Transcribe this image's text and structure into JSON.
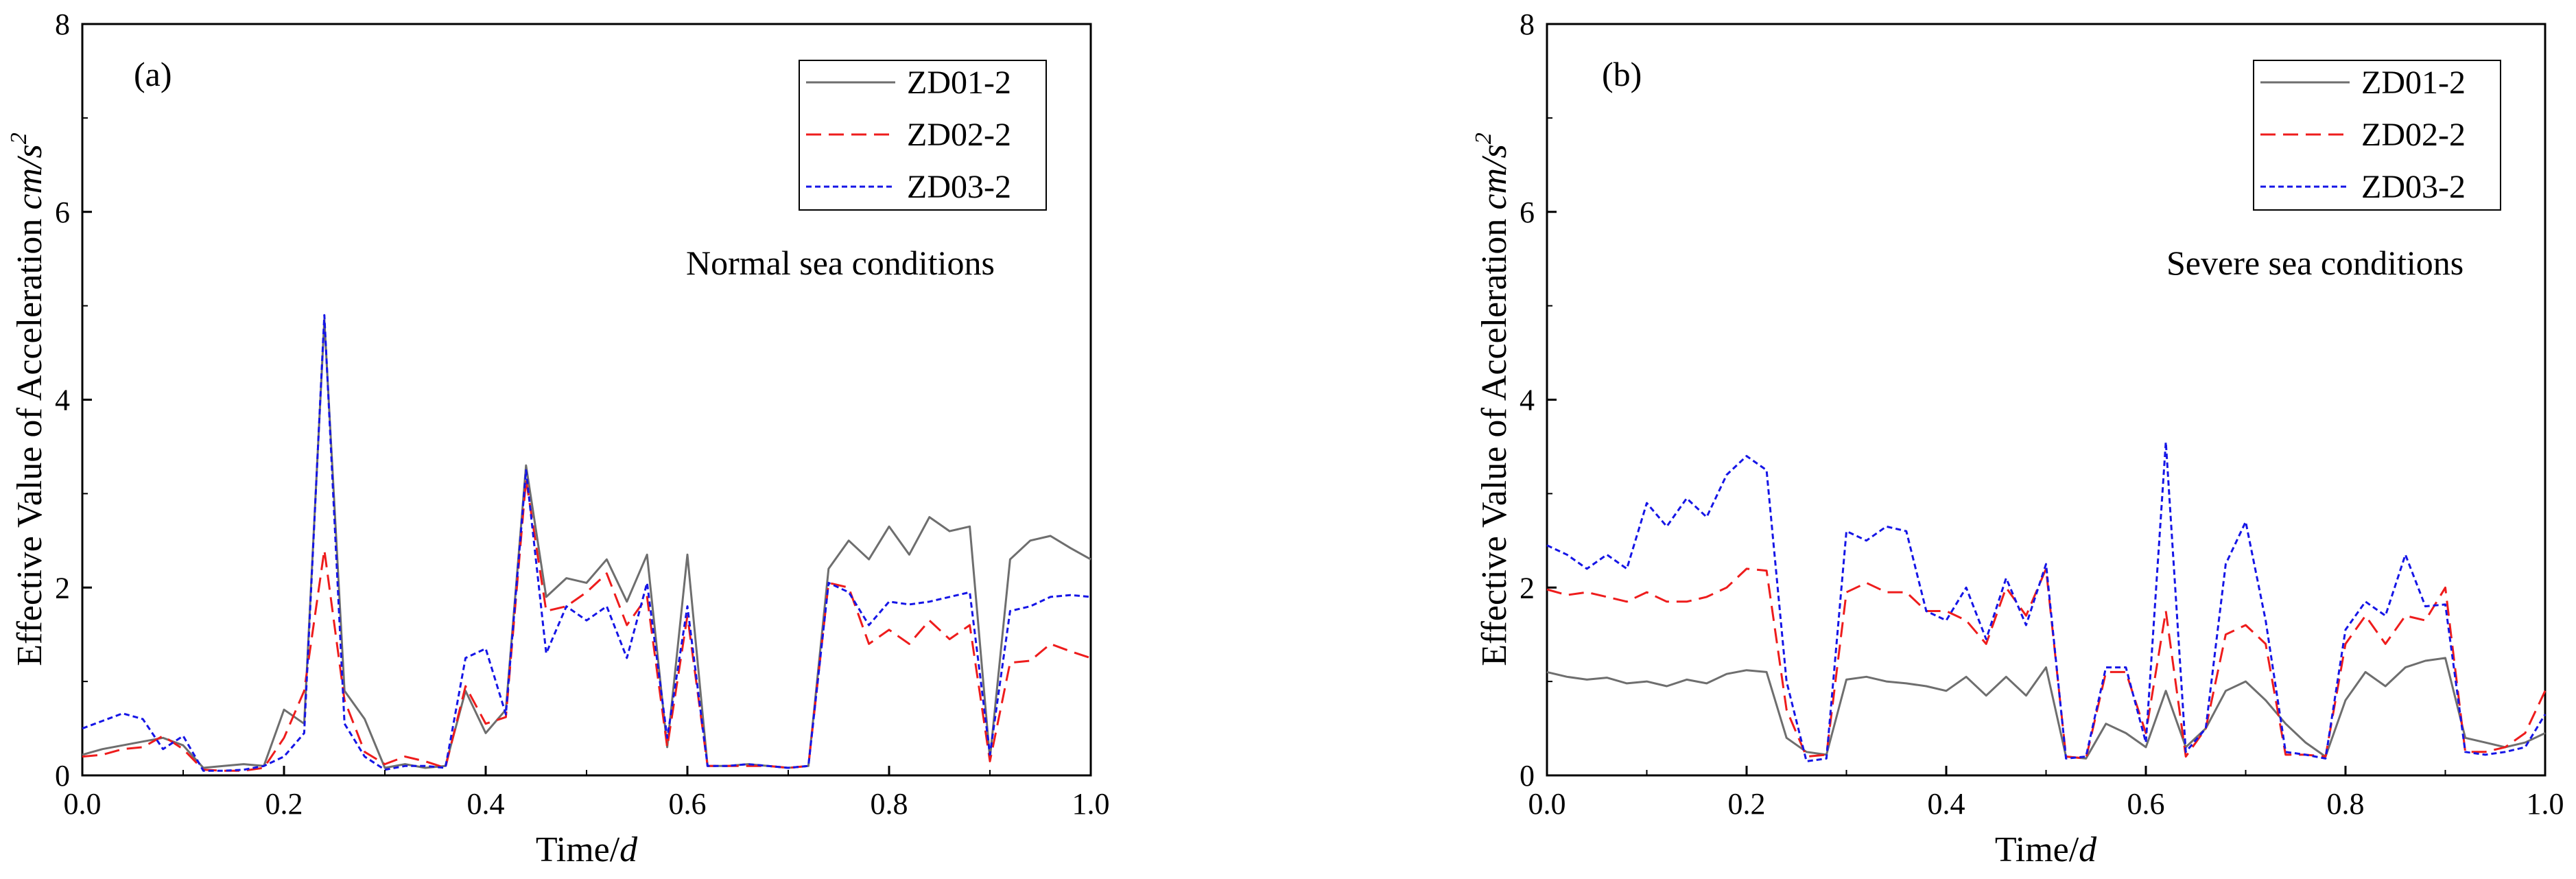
{
  "chart_data": [
    {
      "type": "line",
      "panel_label": "(a)",
      "annotation": "Normal sea conditions",
      "title": "",
      "xlabel": {
        "main": "Time/",
        "unit": "d"
      },
      "ylabel": {
        "main": "Effective Value of Acceleration ",
        "unit": "cm/s",
        "exp": "2"
      },
      "xlim": [
        0,
        1
      ],
      "ylim": [
        0,
        8
      ],
      "xticks": [
        0.0,
        0.2,
        0.4,
        0.6,
        0.8,
        1.0
      ],
      "xtick_labels": [
        "0.0",
        "0.2",
        "0.4",
        "0.6",
        "0.8",
        "1.0"
      ],
      "yticks": [
        0,
        2,
        4,
        6,
        8
      ],
      "ytick_labels": [
        "0",
        "2",
        "4",
        "6",
        "8"
      ],
      "legend_position": "top-right",
      "x": [
        0.0,
        0.02,
        0.04,
        0.06,
        0.08,
        0.1,
        0.12,
        0.14,
        0.16,
        0.18,
        0.2,
        0.22,
        0.24,
        0.26,
        0.28,
        0.3,
        0.32,
        0.34,
        0.36,
        0.38,
        0.4,
        0.42,
        0.44,
        0.46,
        0.48,
        0.5,
        0.52,
        0.54,
        0.56,
        0.58,
        0.6,
        0.62,
        0.64,
        0.66,
        0.68,
        0.7,
        0.72,
        0.74,
        0.76,
        0.78,
        0.8,
        0.82,
        0.84,
        0.86,
        0.88,
        0.9,
        0.92,
        0.94,
        0.96,
        0.98,
        1.0
      ],
      "series": [
        {
          "name": "ZD01-2",
          "color": "#6e6e6e",
          "dash": "solid",
          "values": [
            0.22,
            0.28,
            0.32,
            0.36,
            0.4,
            0.32,
            0.08,
            0.1,
            0.12,
            0.1,
            0.7,
            0.55,
            4.85,
            0.9,
            0.6,
            0.08,
            0.12,
            0.08,
            0.1,
            0.9,
            0.45,
            0.7,
            3.3,
            1.9,
            2.1,
            2.05,
            2.3,
            1.85,
            2.35,
            0.3,
            2.35,
            0.1,
            0.1,
            0.12,
            0.1,
            0.08,
            0.1,
            2.2,
            2.5,
            2.3,
            2.65,
            2.35,
            2.75,
            2.6,
            2.65,
            0.18,
            2.3,
            2.5,
            2.55,
            2.42,
            2.3
          ]
        },
        {
          "name": "ZD02-2",
          "color": "#ee1c1c",
          "dash": "dashed",
          "values": [
            0.2,
            0.22,
            0.28,
            0.3,
            0.42,
            0.28,
            0.06,
            0.05,
            0.05,
            0.08,
            0.4,
            0.9,
            2.4,
            0.8,
            0.25,
            0.12,
            0.2,
            0.15,
            0.08,
            0.95,
            0.55,
            0.62,
            3.15,
            1.75,
            1.8,
            1.95,
            2.15,
            1.6,
            1.9,
            0.3,
            1.7,
            0.1,
            0.1,
            0.1,
            0.1,
            0.08,
            0.1,
            2.05,
            2.0,
            1.4,
            1.55,
            1.4,
            1.65,
            1.45,
            1.6,
            0.15,
            1.2,
            1.22,
            1.4,
            1.32,
            1.25
          ]
        },
        {
          "name": "ZD03-2",
          "color": "#1515e6",
          "dash": "dotted",
          "values": [
            0.5,
            0.58,
            0.66,
            0.6,
            0.28,
            0.42,
            0.05,
            0.05,
            0.06,
            0.1,
            0.2,
            0.45,
            4.9,
            0.55,
            0.2,
            0.06,
            0.1,
            0.1,
            0.08,
            1.25,
            1.35,
            0.65,
            3.25,
            1.3,
            1.8,
            1.65,
            1.8,
            1.25,
            2.05,
            0.4,
            1.8,
            0.1,
            0.1,
            0.12,
            0.1,
            0.08,
            0.1,
            2.05,
            1.95,
            1.6,
            1.85,
            1.82,
            1.85,
            1.9,
            1.95,
            0.22,
            1.75,
            1.8,
            1.9,
            1.92,
            1.9
          ]
        }
      ]
    },
    {
      "type": "line",
      "panel_label": "(b)",
      "annotation": "Severe sea conditions",
      "title": "",
      "xlabel": {
        "main": "Time/",
        "unit": "d"
      },
      "ylabel": {
        "main": "Effective Value of Acceleration ",
        "unit": "cm/s",
        "exp": "2"
      },
      "xlim": [
        0,
        1
      ],
      "ylim": [
        0,
        8
      ],
      "xticks": [
        0.0,
        0.2,
        0.4,
        0.6,
        0.8,
        1.0
      ],
      "xtick_labels": [
        "0.0",
        "0.2",
        "0.4",
        "0.6",
        "0.8",
        "1.0"
      ],
      "yticks": [
        0,
        2,
        4,
        6,
        8
      ],
      "ytick_labels": [
        "0",
        "2",
        "4",
        "6",
        "8"
      ],
      "legend_position": "top-right",
      "x": [
        0.0,
        0.02,
        0.04,
        0.06,
        0.08,
        0.1,
        0.12,
        0.14,
        0.16,
        0.18,
        0.2,
        0.22,
        0.24,
        0.26,
        0.28,
        0.3,
        0.32,
        0.34,
        0.36,
        0.38,
        0.4,
        0.42,
        0.44,
        0.46,
        0.48,
        0.5,
        0.52,
        0.54,
        0.56,
        0.58,
        0.6,
        0.62,
        0.64,
        0.66,
        0.68,
        0.7,
        0.72,
        0.74,
        0.76,
        0.78,
        0.8,
        0.82,
        0.84,
        0.86,
        0.88,
        0.9,
        0.92,
        0.94,
        0.96,
        0.98,
        1.0
      ],
      "series": [
        {
          "name": "ZD01-2",
          "color": "#6e6e6e",
          "dash": "solid",
          "values": [
            1.1,
            1.05,
            1.02,
            1.04,
            0.98,
            1.0,
            0.95,
            1.02,
            0.98,
            1.08,
            1.12,
            1.1,
            0.4,
            0.25,
            0.22,
            1.02,
            1.05,
            1.0,
            0.98,
            0.95,
            0.9,
            1.05,
            0.85,
            1.05,
            0.85,
            1.15,
            0.2,
            0.18,
            0.55,
            0.45,
            0.3,
            0.9,
            0.3,
            0.5,
            0.9,
            1.0,
            0.8,
            0.55,
            0.35,
            0.2,
            0.8,
            1.1,
            0.95,
            1.15,
            1.22,
            1.25,
            0.4,
            0.35,
            0.3,
            0.35,
            0.45
          ]
        },
        {
          "name": "ZD02-2",
          "color": "#ee1c1c",
          "dash": "dashed",
          "values": [
            1.98,
            1.92,
            1.95,
            1.9,
            1.85,
            1.95,
            1.85,
            1.85,
            1.9,
            2.0,
            2.2,
            2.18,
            0.7,
            0.2,
            0.22,
            1.95,
            2.05,
            1.95,
            1.95,
            1.75,
            1.75,
            1.65,
            1.4,
            2.0,
            1.7,
            2.2,
            0.2,
            0.18,
            1.1,
            1.1,
            0.45,
            1.75,
            0.2,
            0.5,
            1.5,
            1.6,
            1.4,
            0.22,
            0.22,
            0.2,
            1.4,
            1.7,
            1.4,
            1.7,
            1.65,
            2.0,
            0.25,
            0.25,
            0.3,
            0.45,
            0.9
          ]
        },
        {
          "name": "ZD03-2",
          "color": "#1515e6",
          "dash": "dotted",
          "values": [
            2.45,
            2.35,
            2.2,
            2.35,
            2.2,
            2.9,
            2.65,
            2.95,
            2.75,
            3.2,
            3.4,
            3.25,
            1.0,
            0.15,
            0.18,
            2.6,
            2.5,
            2.65,
            2.6,
            1.75,
            1.65,
            2.0,
            1.45,
            2.1,
            1.6,
            2.25,
            0.18,
            0.2,
            1.15,
            1.15,
            0.35,
            3.55,
            0.25,
            0.5,
            2.25,
            2.7,
            1.65,
            0.25,
            0.22,
            0.18,
            1.55,
            1.85,
            1.7,
            2.35,
            1.8,
            1.82,
            0.25,
            0.22,
            0.25,
            0.3,
            0.65
          ]
        }
      ]
    }
  ]
}
